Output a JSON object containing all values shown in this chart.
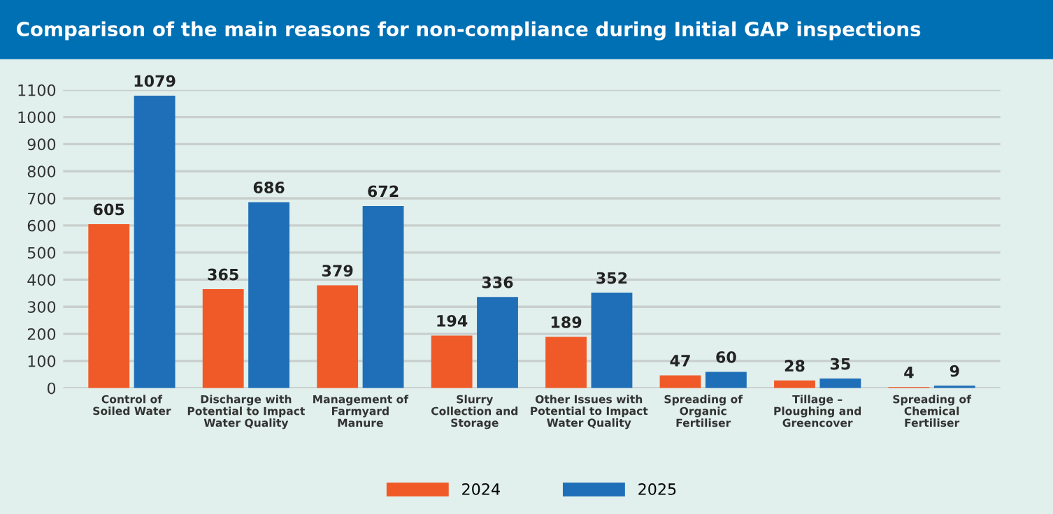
{
  "chart_data": {
    "type": "bar",
    "title": "Comparison of the main reasons for non-compliance during Initial GAP inspections",
    "categories": [
      "Control of\nSoiled Water",
      "Discharge with\nPotential to Impact\nWater Quality",
      "Management of\nFarmyard\nManure",
      "Slurry\nCollection and\nStorage",
      "Other Issues with\nPotential to Impact\nWater Quality",
      "Spreading of\nOrganic\nFertiliser",
      "Tillage –\nPloughing and\nGreencover",
      "Spreading of\nChemical\nFertiliser"
    ],
    "series": [
      {
        "name": "2024",
        "color": "#f05a28",
        "values": [
          605,
          365,
          379,
          194,
          189,
          47,
          28,
          4
        ]
      },
      {
        "name": "2025",
        "color": "#1f6fb8",
        "values": [
          1079,
          686,
          672,
          336,
          352,
          60,
          35,
          9
        ]
      }
    ],
    "ylim": [
      0,
      1100
    ],
    "yticks": [
      0,
      100,
      200,
      300,
      400,
      500,
      600,
      700,
      800,
      900,
      1000,
      1100
    ],
    "grid": "y",
    "legend": "bottom",
    "data_labels": true
  }
}
